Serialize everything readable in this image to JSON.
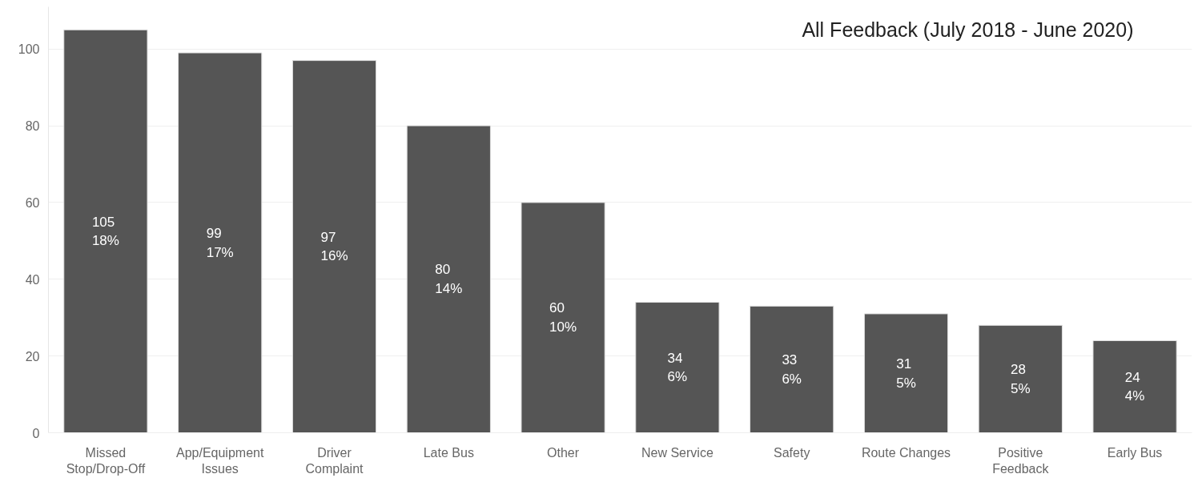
{
  "chart_data": {
    "type": "bar",
    "title": "All Feedback (July 2018 - June 2020)",
    "categories": [
      "Missed\nStop/Drop-Off",
      "App/Equipment\nIssues",
      "Driver\nComplaint",
      "Late Bus",
      "Other",
      "New Service",
      "Safety",
      "Route Changes",
      "Positive\nFeedback",
      "Early Bus"
    ],
    "values": [
      105,
      99,
      97,
      80,
      60,
      34,
      33,
      31,
      28,
      24
    ],
    "value_labels": [
      "105\n18%",
      "99\n17%",
      "97\n16%",
      "80\n14%",
      "60\n10%",
      "34\n6%",
      "33\n6%",
      "31\n5%",
      "28\n5%",
      "24\n4%"
    ],
    "color": "#555555",
    "ylim": [
      0,
      111
    ],
    "yticks": [
      0,
      20,
      40,
      60,
      80,
      100
    ],
    "grid": "y"
  }
}
